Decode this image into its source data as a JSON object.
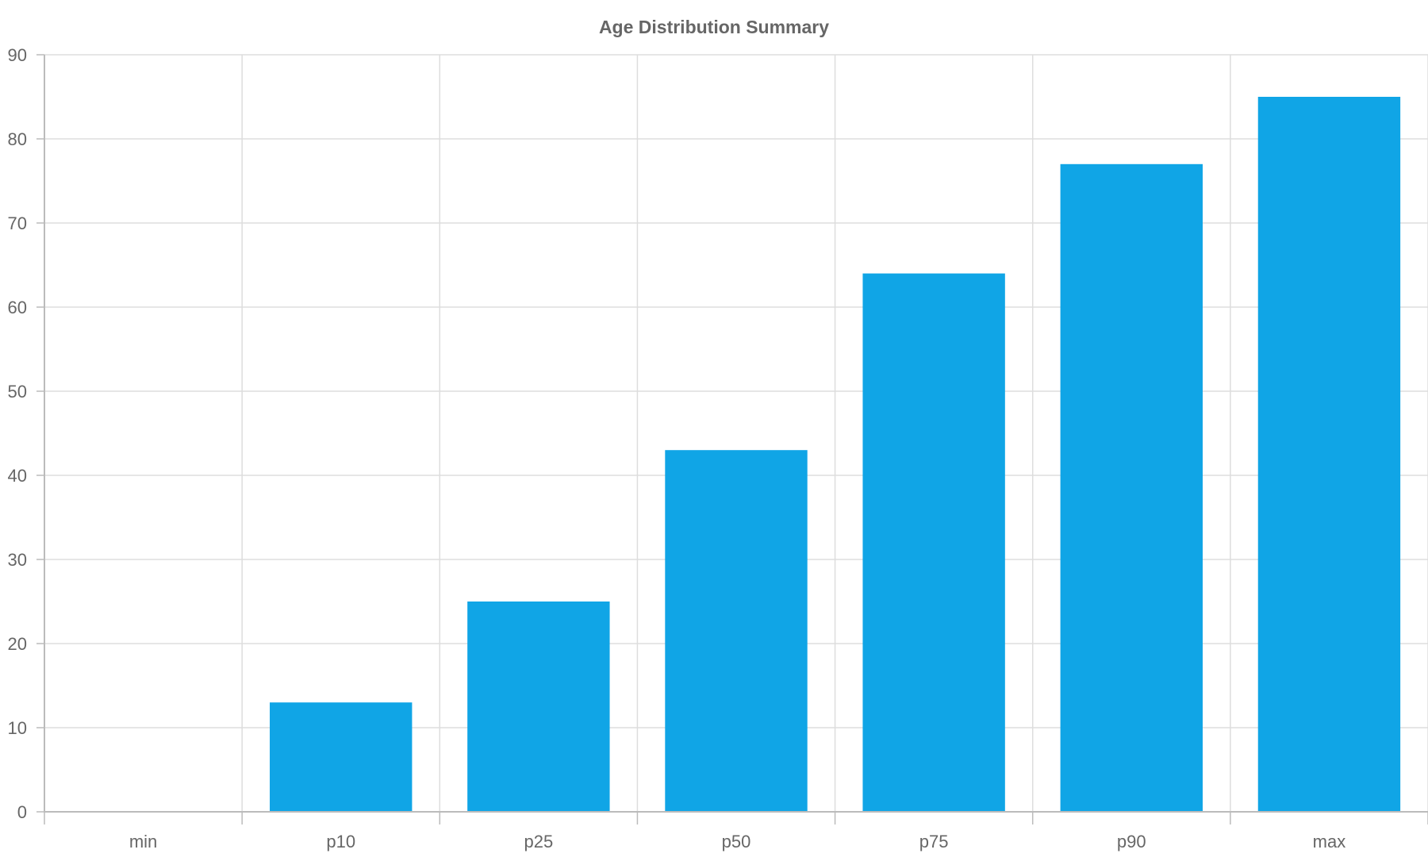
{
  "chart_data": {
    "type": "bar",
    "title": "Age Distribution Summary",
    "xlabel": "",
    "ylabel": "",
    "categories": [
      "min",
      "p10",
      "p25",
      "p50",
      "p75",
      "p90",
      "max"
    ],
    "values": [
      0,
      13,
      25,
      43,
      64,
      77,
      85
    ],
    "ylim": [
      0,
      90
    ],
    "yticks": [
      "0",
      "10",
      "20",
      "30",
      "40",
      "50",
      "60",
      "70",
      "80",
      "90"
    ],
    "grid": true,
    "legend": "none",
    "colors": {
      "bar": "#10a5e6",
      "grid": "#dddddd",
      "axis": "#bbbbbb",
      "text": "#666666"
    }
  }
}
